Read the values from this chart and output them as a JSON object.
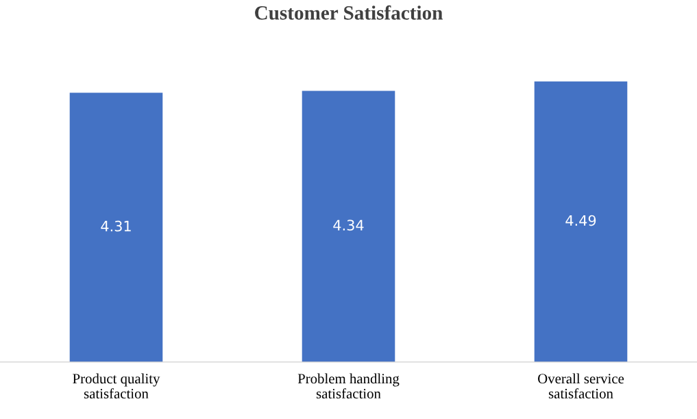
{
  "chart_data": {
    "type": "bar",
    "title": "Customer Satisfaction",
    "categories": [
      "Product quality\nsatisfaction",
      "Problem handling\nsatisfaction",
      "Overall service\nsatisfaction"
    ],
    "values": [
      4.31,
      4.34,
      4.49
    ],
    "color": "#4472c4",
    "data_labels": true
  }
}
